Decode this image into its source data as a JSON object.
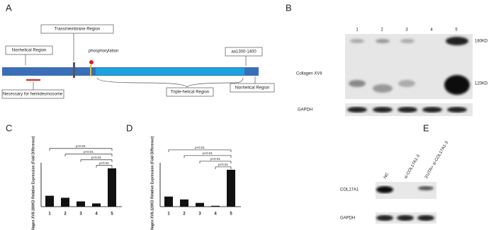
{
  "panels": {
    "A": {
      "label": "A",
      "transmembrane": "Transmembrane Region",
      "nonhelical_left": "Nonhelical Region",
      "phosphorylation": "phosphorylation",
      "aa_range": "aa1300-1400",
      "hemidesmosome": "Necessary for hemidesmosome",
      "triple_helical": "Triple-helical Region",
      "nonhelical_right": "Nonhelical Region"
    },
    "B": {
      "label": "B",
      "lanes": [
        "1",
        "2",
        "3",
        "4",
        "5"
      ],
      "protein": "Collagen XVII",
      "band_high": "180KD",
      "band_low": "120KD",
      "control": "GAPDH"
    },
    "E": {
      "label": "E",
      "lanes": [
        "NC",
        "si-COL17A1-3",
        "3'UTR+ si-COL17A1-3"
      ],
      "protein": "COL17A1",
      "control": "GAPDH"
    }
  },
  "chart_data": [
    {
      "type": "bar",
      "panel_label": "C",
      "y_label": "Collagen XVII-180KD Relative Expression (Fold Difference)",
      "categories": [
        "1",
        "2",
        "3",
        "4",
        "5"
      ],
      "values": [
        0.27,
        0.22,
        0.13,
        0.08,
        0.95
      ],
      "color": "#111111",
      "ylim": [
        0,
        1
      ],
      "annotations": [
        "p<0.01",
        "p<0.01",
        "p<0.01",
        "p<0.01"
      ]
    },
    {
      "type": "bar",
      "panel_label": "D",
      "y_label": "Collagen XVII-120KD Relative Expression (Fold Difference)",
      "categories": [
        "1",
        "2",
        "3",
        "4",
        "5"
      ],
      "values": [
        0.35,
        0.25,
        0.13,
        0.03,
        1.28
      ],
      "color": "#111111",
      "ylim": [
        0,
        1.4
      ],
      "annotations": [
        "p<0.01",
        "p<0.01",
        "p<0.01",
        "p<0.01"
      ]
    }
  ]
}
